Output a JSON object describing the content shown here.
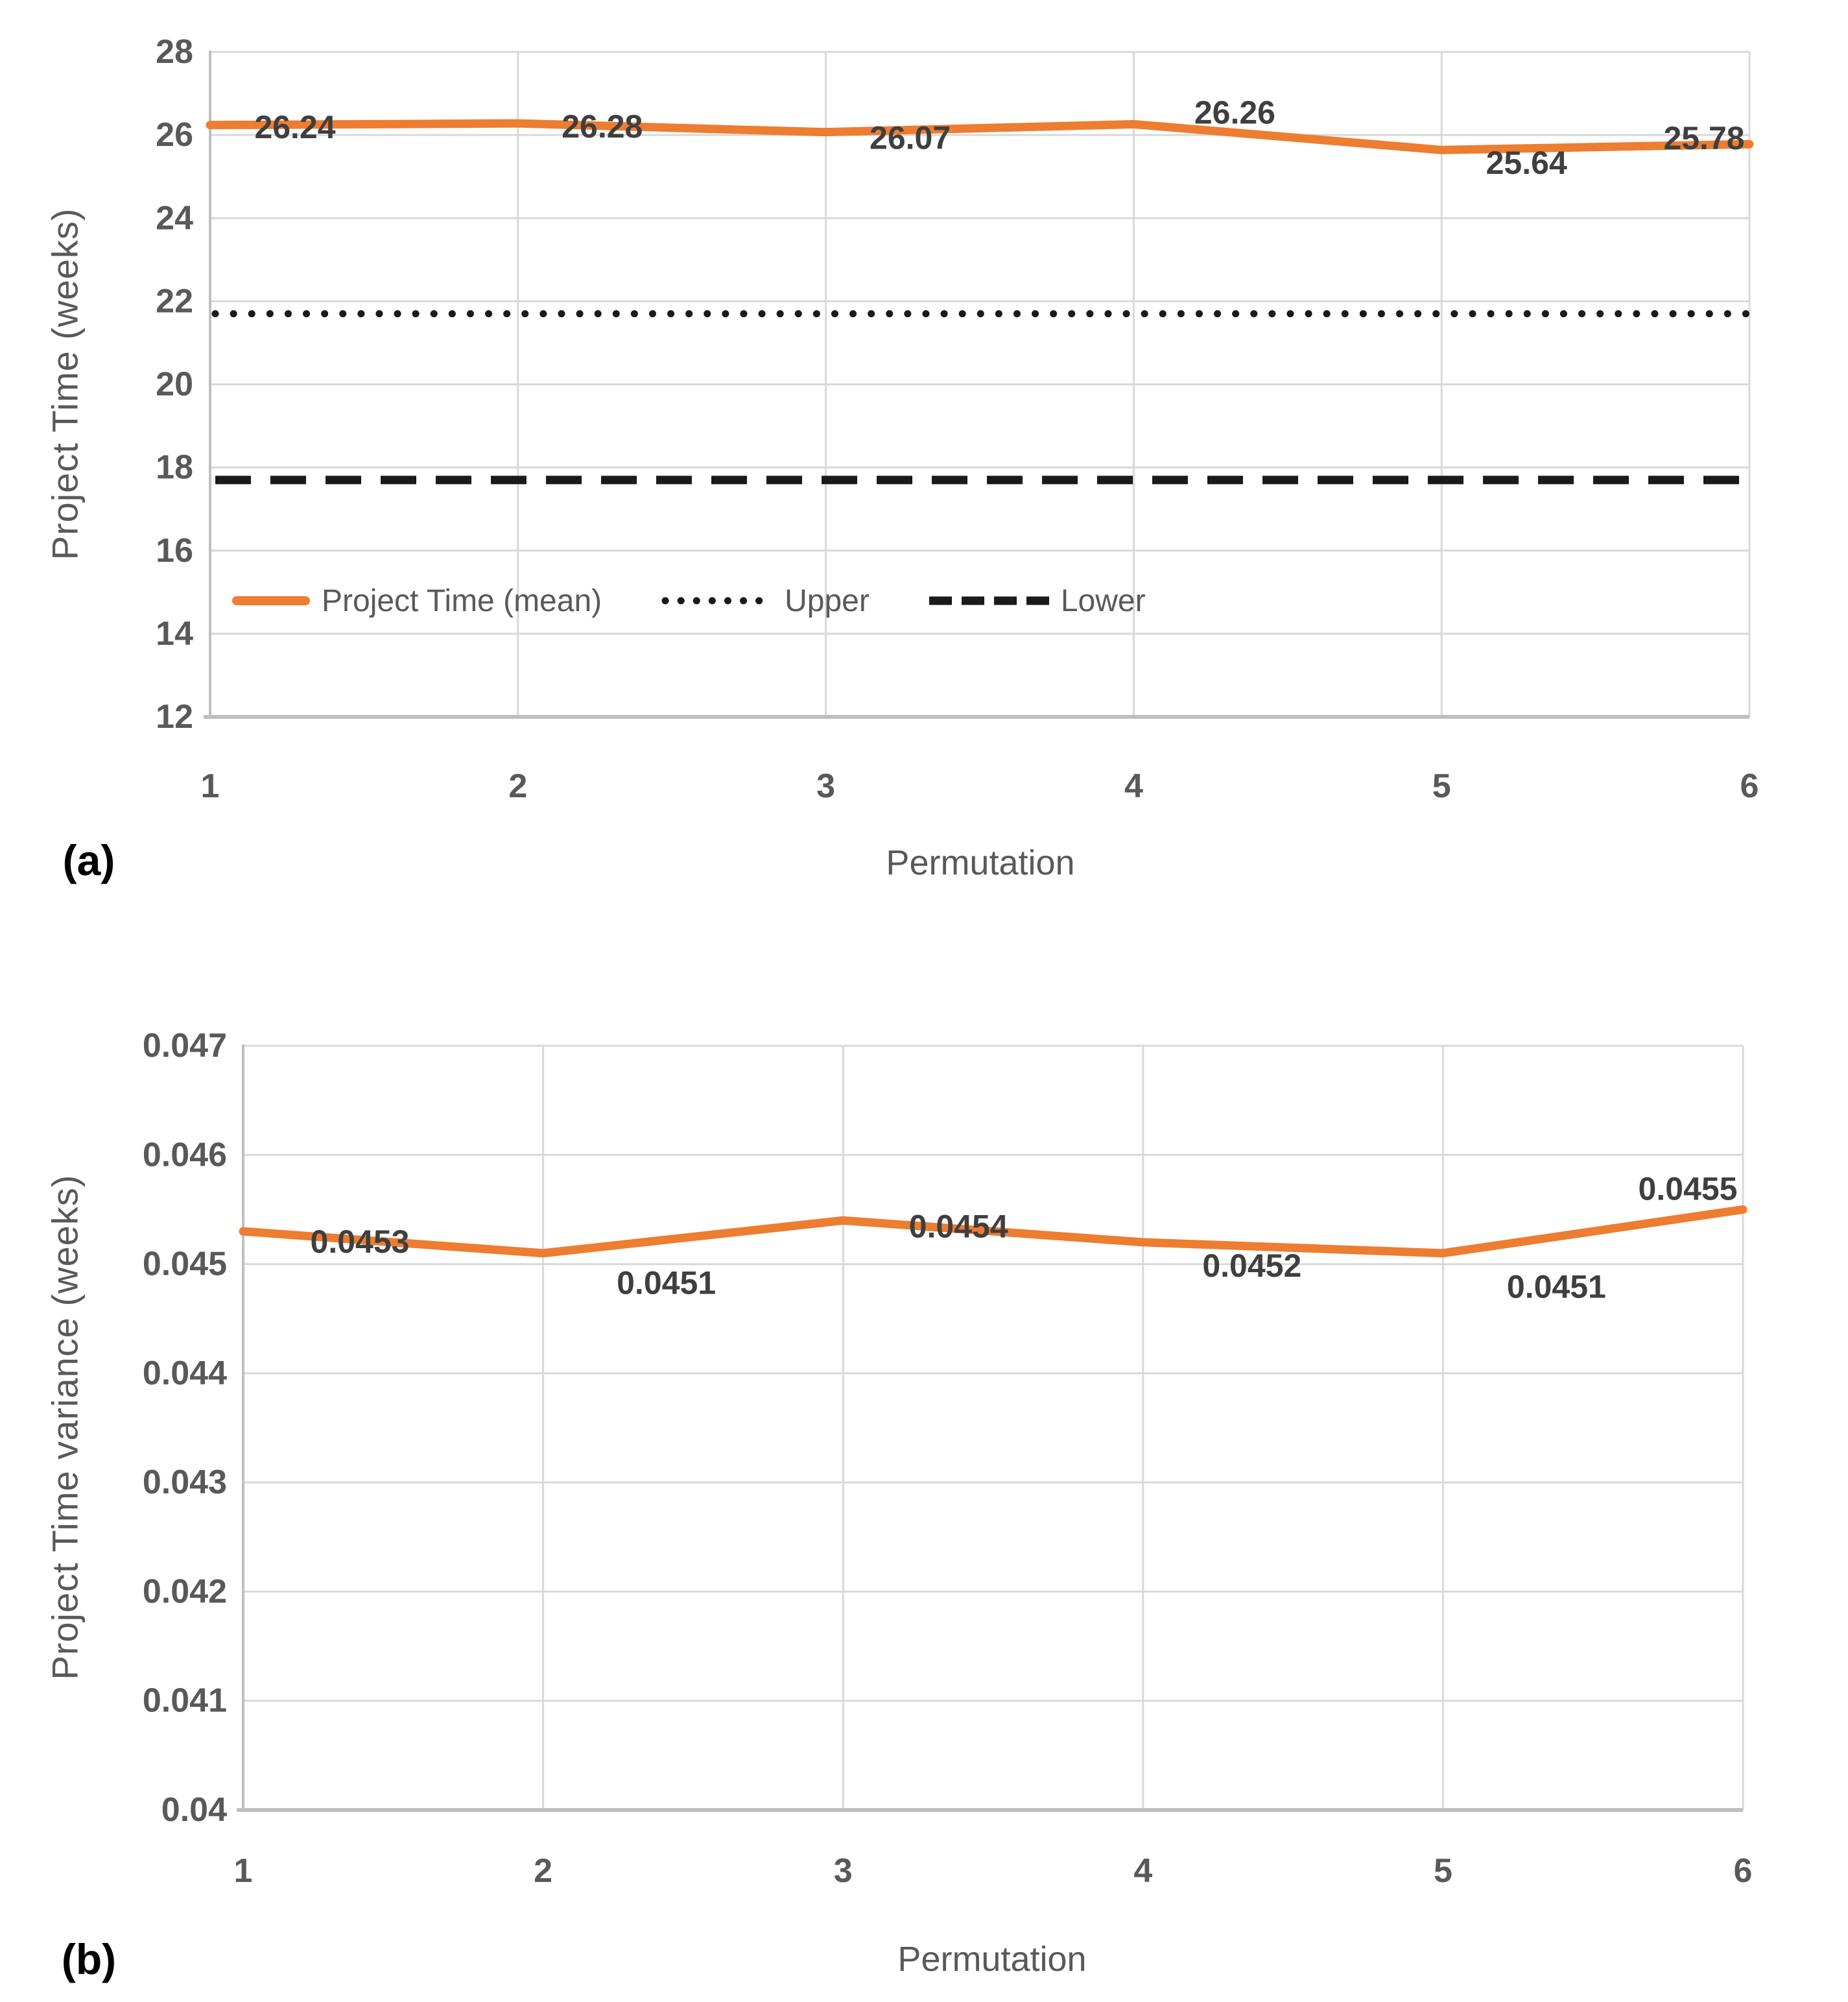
{
  "colors": {
    "background": "#FFFFFF",
    "series_orange": "#ED7D31",
    "bound_line_black": "#1A1A1A",
    "gridline": "#D9D9D9",
    "axis_line": "#BFBFBF",
    "tick_label": "#595959",
    "data_label": "#3F3F3F",
    "axis_title": "#595959",
    "panel_label": "#000000"
  },
  "chart_data": [
    {
      "id": "a",
      "type": "line",
      "panel_label": "(a)",
      "xlabel": "Permutation",
      "ylabel": "Project Time (weeks)",
      "categories": [
        1,
        2,
        3,
        4,
        5,
        6
      ],
      "x_tick_labels": [
        "1",
        "2",
        "3",
        "4",
        "5",
        "6"
      ],
      "ylim": [
        12,
        28
      ],
      "y_ticks": [
        28,
        26,
        24,
        22,
        20,
        18,
        16,
        14,
        12
      ],
      "y_tick_labels": [
        "28",
        "26",
        "24",
        "22",
        "20",
        "18",
        "16",
        "14",
        "12"
      ],
      "grid": true,
      "legend_position": "inside-bottom-left",
      "series": [
        {
          "name": "Project Time (mean)",
          "line_style": "solid",
          "color": "#ED7D31",
          "values": [
            26.24,
            26.28,
            26.07,
            26.26,
            25.64,
            25.78
          ],
          "data_labels": [
            "26.24",
            "26.28",
            "26.07",
            "26.26",
            "25.64",
            "25.78"
          ]
        },
        {
          "name": "Upper",
          "line_style": "dotted",
          "color": "#1A1A1A",
          "constant_value": 21.7,
          "estimated": true
        },
        {
          "name": "Lower",
          "line_style": "dashed",
          "color": "#1A1A1A",
          "constant_value": 17.7,
          "estimated": true
        }
      ]
    },
    {
      "id": "b",
      "type": "line",
      "panel_label": "(b)",
      "xlabel": "Permutation",
      "ylabel": "Project Time variance (weeks)",
      "categories": [
        1,
        2,
        3,
        4,
        5,
        6
      ],
      "x_tick_labels": [
        "1",
        "2",
        "3",
        "4",
        "5",
        "6"
      ],
      "ylim": [
        0.04,
        0.047
      ],
      "y_ticks": [
        0.047,
        0.046,
        0.045,
        0.044,
        0.043,
        0.042,
        0.041,
        0.04
      ],
      "y_tick_labels": [
        "0.047",
        "0.046",
        "0.045",
        "0.044",
        "0.043",
        "0.042",
        "0.041",
        "0.04"
      ],
      "grid": true,
      "legend_position": "none",
      "series": [
        {
          "name": "Project Time variance",
          "line_style": "solid",
          "color": "#ED7D31",
          "values": [
            0.0453,
            0.0451,
            0.0454,
            0.0452,
            0.0451,
            0.0455
          ],
          "data_labels": [
            "0.0453",
            "0.0451",
            "0.0454",
            "0.0452",
            "0.0451",
            "0.0455"
          ]
        }
      ]
    }
  ]
}
